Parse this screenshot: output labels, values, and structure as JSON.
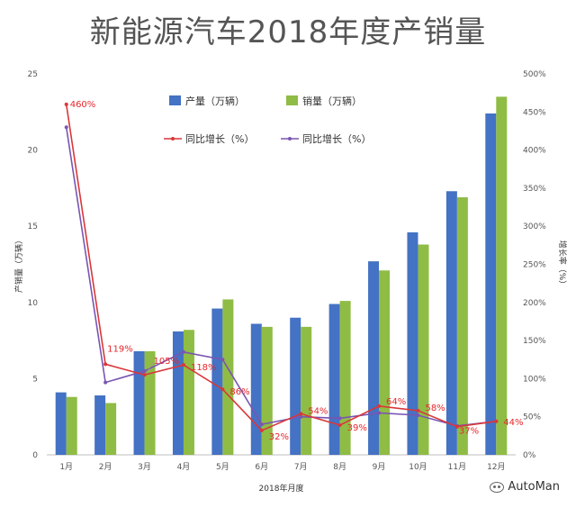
{
  "title": "新能源汽车2018年度产销量",
  "watermark": "AutoMan",
  "colors": {
    "production": "#4472c4",
    "sales": "#8fbc45",
    "yoy_production": "#d9373a",
    "yoy_sales": "#7a55b2",
    "data_label": "#e8262b"
  },
  "chart_data": {
    "type": "bar",
    "xlabel": "2018年月度",
    "ylabel": "产销量（万辆）",
    "y2label": "增长率（%）",
    "ylim": [
      0,
      25
    ],
    "yticks": [
      "0",
      "5",
      "10",
      "15",
      "20",
      "25"
    ],
    "y2lim": [
      0,
      500
    ],
    "y2ticks": [
      "0%",
      "50%",
      "100%",
      "150%",
      "200%",
      "250%",
      "300%",
      "350%",
      "400%",
      "450%",
      "500%"
    ],
    "categories": [
      "1月",
      "2月",
      "3月",
      "4月",
      "5月",
      "6月",
      "7月",
      "8月",
      "9月",
      "10月",
      "11月",
      "12月"
    ],
    "legend_position": "top-right",
    "series": [
      {
        "name": "产量（万辆）",
        "kind": "bar",
        "axis": "left",
        "values": [
          4.1,
          3.9,
          6.8,
          8.1,
          9.6,
          8.6,
          9.0,
          9.9,
          12.7,
          14.6,
          17.3,
          22.4
        ]
      },
      {
        "name": "销量（万辆）",
        "kind": "bar",
        "axis": "left",
        "values": [
          3.8,
          3.4,
          6.8,
          8.2,
          10.2,
          8.4,
          8.4,
          10.1,
          12.1,
          13.8,
          16.9,
          23.5
        ]
      },
      {
        "name": "同比增长（%）",
        "kind": "line",
        "axis": "right",
        "values": [
          460,
          119,
          105,
          118,
          86,
          32,
          54,
          39,
          64,
          58,
          37,
          44
        ],
        "labels": [
          "460%",
          "119%",
          "105%",
          "118%",
          "86%",
          "32%",
          "54%",
          "39%",
          "64%",
          "58%",
          "37%",
          "44%"
        ]
      },
      {
        "name": "同比增长（%）",
        "kind": "line",
        "axis": "right",
        "values": [
          430,
          95,
          110,
          135,
          125,
          40,
          50,
          48,
          55,
          52,
          38,
          44
        ]
      }
    ]
  }
}
